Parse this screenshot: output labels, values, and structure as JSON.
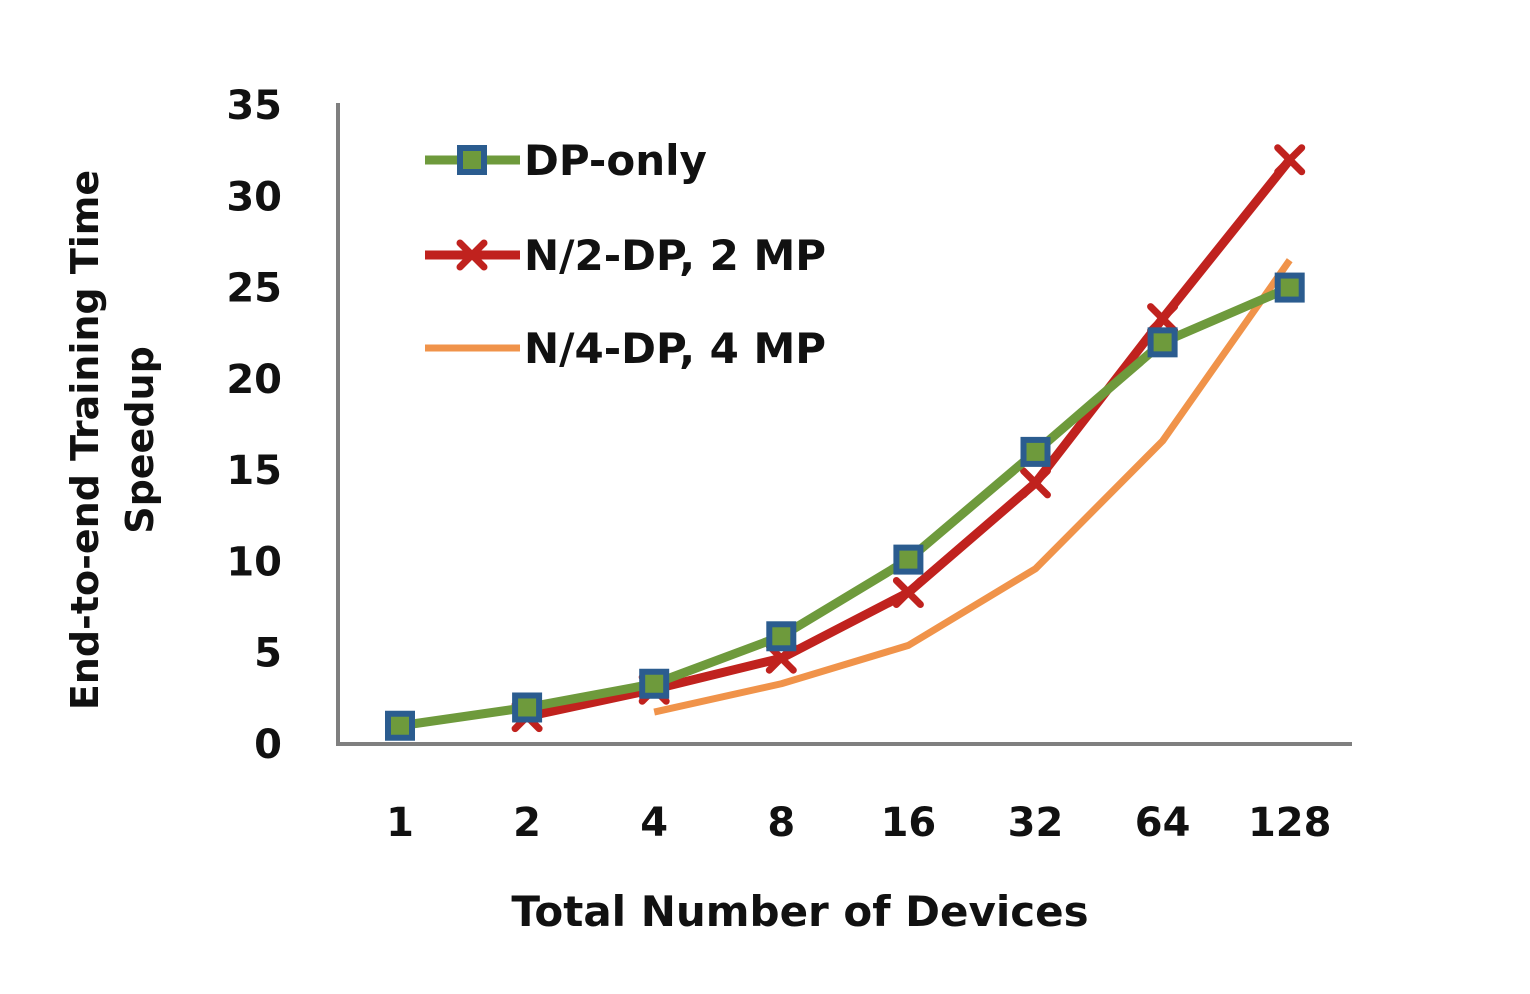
{
  "chart_data": {
    "type": "line",
    "title": "",
    "xlabel": "Total Number of Devices",
    "ylabel": [
      "End-to-end Training Time",
      "Speedup"
    ],
    "categories": [
      "1",
      "2",
      "4",
      "8",
      "16",
      "32",
      "64",
      "128"
    ],
    "ylim": [
      0,
      35
    ],
    "yticks": [
      "0",
      "5",
      "10",
      "15",
      "20",
      "25",
      "30",
      "35"
    ],
    "grid": false,
    "legend_position": "top-left",
    "series": [
      {
        "name": "DP-only",
        "color": "#6E9A3C",
        "marker": "square",
        "marker_color": "#2B5C8F",
        "values": [
          1.0,
          2.0,
          3.3,
          5.9,
          10.1,
          16.0,
          22.0,
          25.0
        ]
      },
      {
        "name": "N/2-DP, 2 MP",
        "color": "#C0221E",
        "marker": "x",
        "marker_color": "#C0221E",
        "values": [
          null,
          1.5,
          3.0,
          4.7,
          8.3,
          14.3,
          23.3,
          32.0
        ]
      },
      {
        "name": "N/4-DP, 4 MP",
        "color": "#F0934A",
        "marker": "none",
        "marker_color": "#F0934A",
        "values": [
          null,
          null,
          1.75,
          3.3,
          5.4,
          9.6,
          16.6,
          26.5
        ]
      }
    ]
  }
}
